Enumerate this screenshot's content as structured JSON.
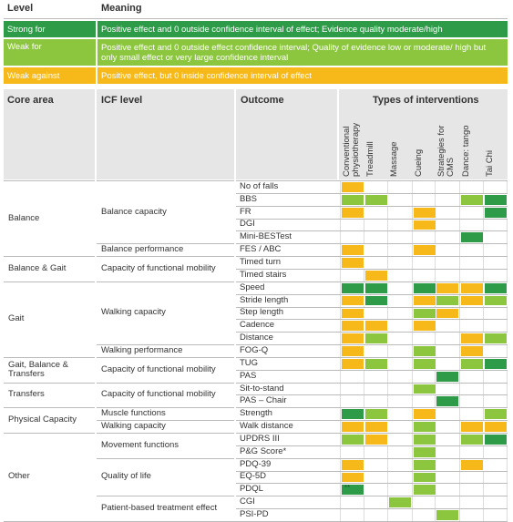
{
  "legend": {
    "level_header": "Level",
    "meaning_header": "Meaning",
    "rows": [
      {
        "level": "Strong for",
        "meaning": "Positive effect and 0 outside confidence interval of effect; Evidence quality moderate/high",
        "color": "#2e9b48"
      },
      {
        "level": "Weak for",
        "meaning": "Positive effect and 0 outside effect confidence interval; Quality of evidence low or moderate/ high but only small effect or very large confidence interval",
        "color": "#8cc63f"
      },
      {
        "level": "Weak against",
        "meaning": "Positive effect, but 0 inside confidence interval of effect",
        "color": "#f7b81a"
      }
    ]
  },
  "colors": {
    "green_dark": "#2e9b48",
    "green_light": "#8cc63f",
    "orange": "#f7b81a",
    "header_gray": "#e6e6e6",
    "rule": "#bbbbbb"
  },
  "table": {
    "headers": {
      "core_area": "Core area",
      "icf_level": "ICF level",
      "outcome": "Outcome",
      "types": "Types of interventions"
    },
    "interventions": [
      "Conventional physiotherapy",
      "Treadmill",
      "Massage",
      "Cueing",
      "Strategies for CMS",
      "Dance: tango",
      "Tai Chi"
    ],
    "core_areas": [
      "Balance",
      "Balance & Gait",
      "Gait",
      "Gait, Balance & Transfers",
      "Transfers",
      "Physical Capacity",
      "Other"
    ],
    "icf_levels": [
      "Balance capacity",
      "Balance performance",
      "Capacity of functional mobility",
      "Walking capacity",
      "Walking performance",
      "Capacity of functional mobility",
      "Capacity of functional mobility",
      "Muscle functions",
      "Walking capacity",
      "Movement functions",
      "Quality of life",
      "Patient-based treatment effect"
    ],
    "outcomes": [
      "No of falls",
      "BBS",
      "FR",
      "DGI",
      "Mini-BESTest",
      "FES / ABC",
      "Timed turn",
      "Timed stairs",
      "Speed",
      "Stride length",
      "Step length",
      "Cadence",
      "Distance",
      "FOG-Q",
      "TUG",
      "PAS",
      "Sit-to-stand",
      "PAS – Chair",
      "Strength",
      "Walk distance",
      "UPDRS III",
      "P&G Score*",
      "PDQ-39",
      "EQ-5D",
      "PDQL",
      "CGI",
      "PSI-PD"
    ],
    "matrix": [
      [
        "O",
        "",
        "",
        "",
        "",
        "",
        ""
      ],
      [
        "L",
        "L",
        "",
        "",
        "",
        "L",
        "D"
      ],
      [
        "O",
        "",
        "",
        "O",
        "",
        "",
        "D"
      ],
      [
        "",
        "",
        "",
        "O",
        "",
        "",
        ""
      ],
      [
        "",
        "",
        "",
        "",
        "",
        "D",
        ""
      ],
      [
        "O",
        "",
        "",
        "O",
        "",
        "",
        ""
      ],
      [
        "O",
        "",
        "",
        "",
        "",
        "",
        ""
      ],
      [
        "",
        "O",
        "",
        "",
        "",
        "",
        ""
      ],
      [
        "D",
        "D",
        "",
        "D",
        "O",
        "O",
        "D"
      ],
      [
        "O",
        "D",
        "",
        "O",
        "L",
        "O",
        "L"
      ],
      [
        "O",
        "",
        "",
        "L",
        "O",
        "",
        ""
      ],
      [
        "O",
        "O",
        "",
        "O",
        "",
        "",
        ""
      ],
      [
        "O",
        "L",
        "",
        "",
        "",
        "O",
        "L"
      ],
      [
        "O",
        "",
        "",
        "L",
        "",
        "O",
        ""
      ],
      [
        "O",
        "L",
        "",
        "L",
        "",
        "L",
        "D"
      ],
      [
        "",
        "",
        "",
        "",
        "D",
        "",
        ""
      ],
      [
        "",
        "",
        "",
        "L",
        "",
        "",
        ""
      ],
      [
        "",
        "",
        "",
        "",
        "D",
        "",
        ""
      ],
      [
        "D",
        "L",
        "",
        "O",
        "",
        "",
        "L"
      ],
      [
        "O",
        "O",
        "",
        "L",
        "",
        "O",
        "O"
      ],
      [
        "L",
        "O",
        "",
        "L",
        "",
        "L",
        "D"
      ],
      [
        "",
        "",
        "",
        "L",
        "",
        "",
        ""
      ],
      [
        "O",
        "",
        "",
        "L",
        "",
        "O",
        ""
      ],
      [
        "O",
        "",
        "",
        "L",
        "",
        "",
        ""
      ],
      [
        "D",
        "",
        "",
        "L",
        "",
        "",
        ""
      ],
      [
        "",
        "",
        "L",
        "",
        "",
        "",
        ""
      ],
      [
        "",
        "",
        "",
        "",
        "L",
        "",
        ""
      ]
    ],
    "note_mark": "**"
  }
}
